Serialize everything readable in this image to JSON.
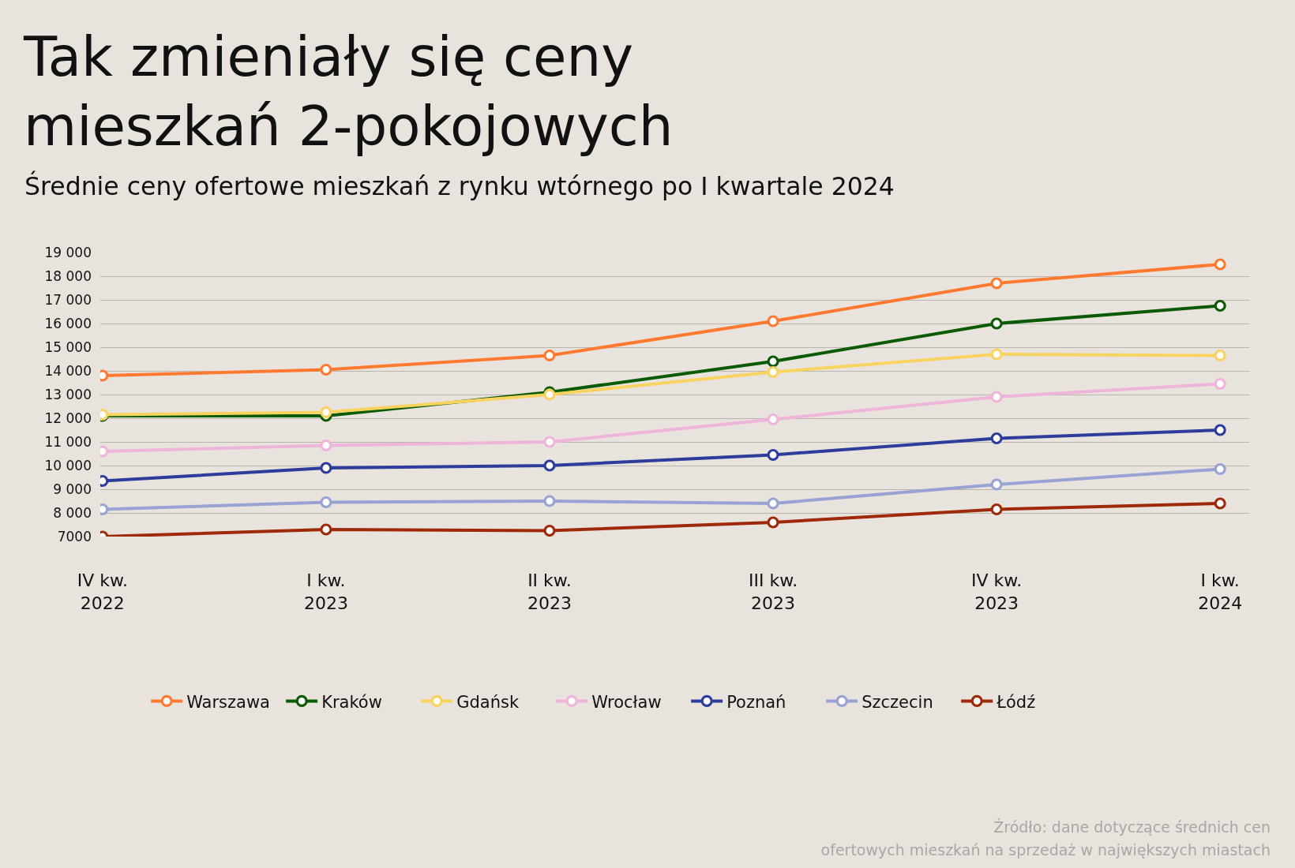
{
  "chart_data": {
    "type": "line",
    "title": "Tak zmieniały się ceny\nmieszkań 2-pokojowych",
    "subtitle": "Średnie ceny ofertowe mieszkań z rynku wtórnego po I kwartale 2024",
    "annotations": [
      "Źródło: dane dotyczące średnich cen\nofertowych mieszkań na sprzedaż w największych miastach"
    ],
    "categories": [
      "IV kw.\n2022",
      "I kw.\n2023",
      "II kw.\n2023",
      "III kw.\n2023",
      "IV kw.\n2023",
      "I kw.\n2024"
    ],
    "series": [
      {
        "name": "Warszawa",
        "color": "#ff7a30",
        "values": [
          13800,
          14050,
          14650,
          16100,
          17700,
          18500
        ]
      },
      {
        "name": "Kraków",
        "color": "#0b5a06",
        "values": [
          12100,
          12100,
          13100,
          14400,
          16000,
          16750
        ]
      },
      {
        "name": "Gdańsk",
        "color": "#f9d35f",
        "values": [
          12150,
          12250,
          13000,
          13950,
          14700,
          14650
        ]
      },
      {
        "name": "Wrocław",
        "color": "#eeb4da",
        "values": [
          10600,
          10850,
          11000,
          11950,
          12900,
          13450
        ]
      },
      {
        "name": "Poznań",
        "color": "#2e3d9c",
        "values": [
          9350,
          9900,
          10000,
          10450,
          11150,
          11500
        ]
      },
      {
        "name": "Szczecin",
        "color": "#98a3d3",
        "values": [
          8150,
          8450,
          8500,
          8400,
          9200,
          9850
        ]
      },
      {
        "name": "Łódź",
        "color": "#9e2a0a",
        "values": [
          7000,
          7300,
          7250,
          7600,
          8150,
          8400
        ]
      }
    ],
    "ylim": [
      7000,
      19000
    ],
    "yticks": [
      7000,
      {
        "value": 8000,
        "label": "8 000"
      },
      {
        "value": 9000,
        "label": "9 000"
      },
      {
        "value": 10000,
        "label": "10 000"
      },
      {
        "value": 11000,
        "label": "11 000"
      },
      {
        "value": 12000,
        "label": "12 000"
      },
      {
        "value": 13000,
        "label": "13 000"
      },
      {
        "value": 14000,
        "label": "14 000"
      },
      {
        "value": 15000,
        "label": "15 000"
      },
      {
        "value": 16000,
        "label": "16 000"
      },
      {
        "value": 17000,
        "label": "17 000"
      },
      {
        "value": 18000,
        "label": "18 000"
      },
      {
        "value": 19000,
        "label": "19 000"
      }
    ],
    "grid": "y",
    "legend": "bottom",
    "marker": "circle",
    "line_style": "solid"
  }
}
